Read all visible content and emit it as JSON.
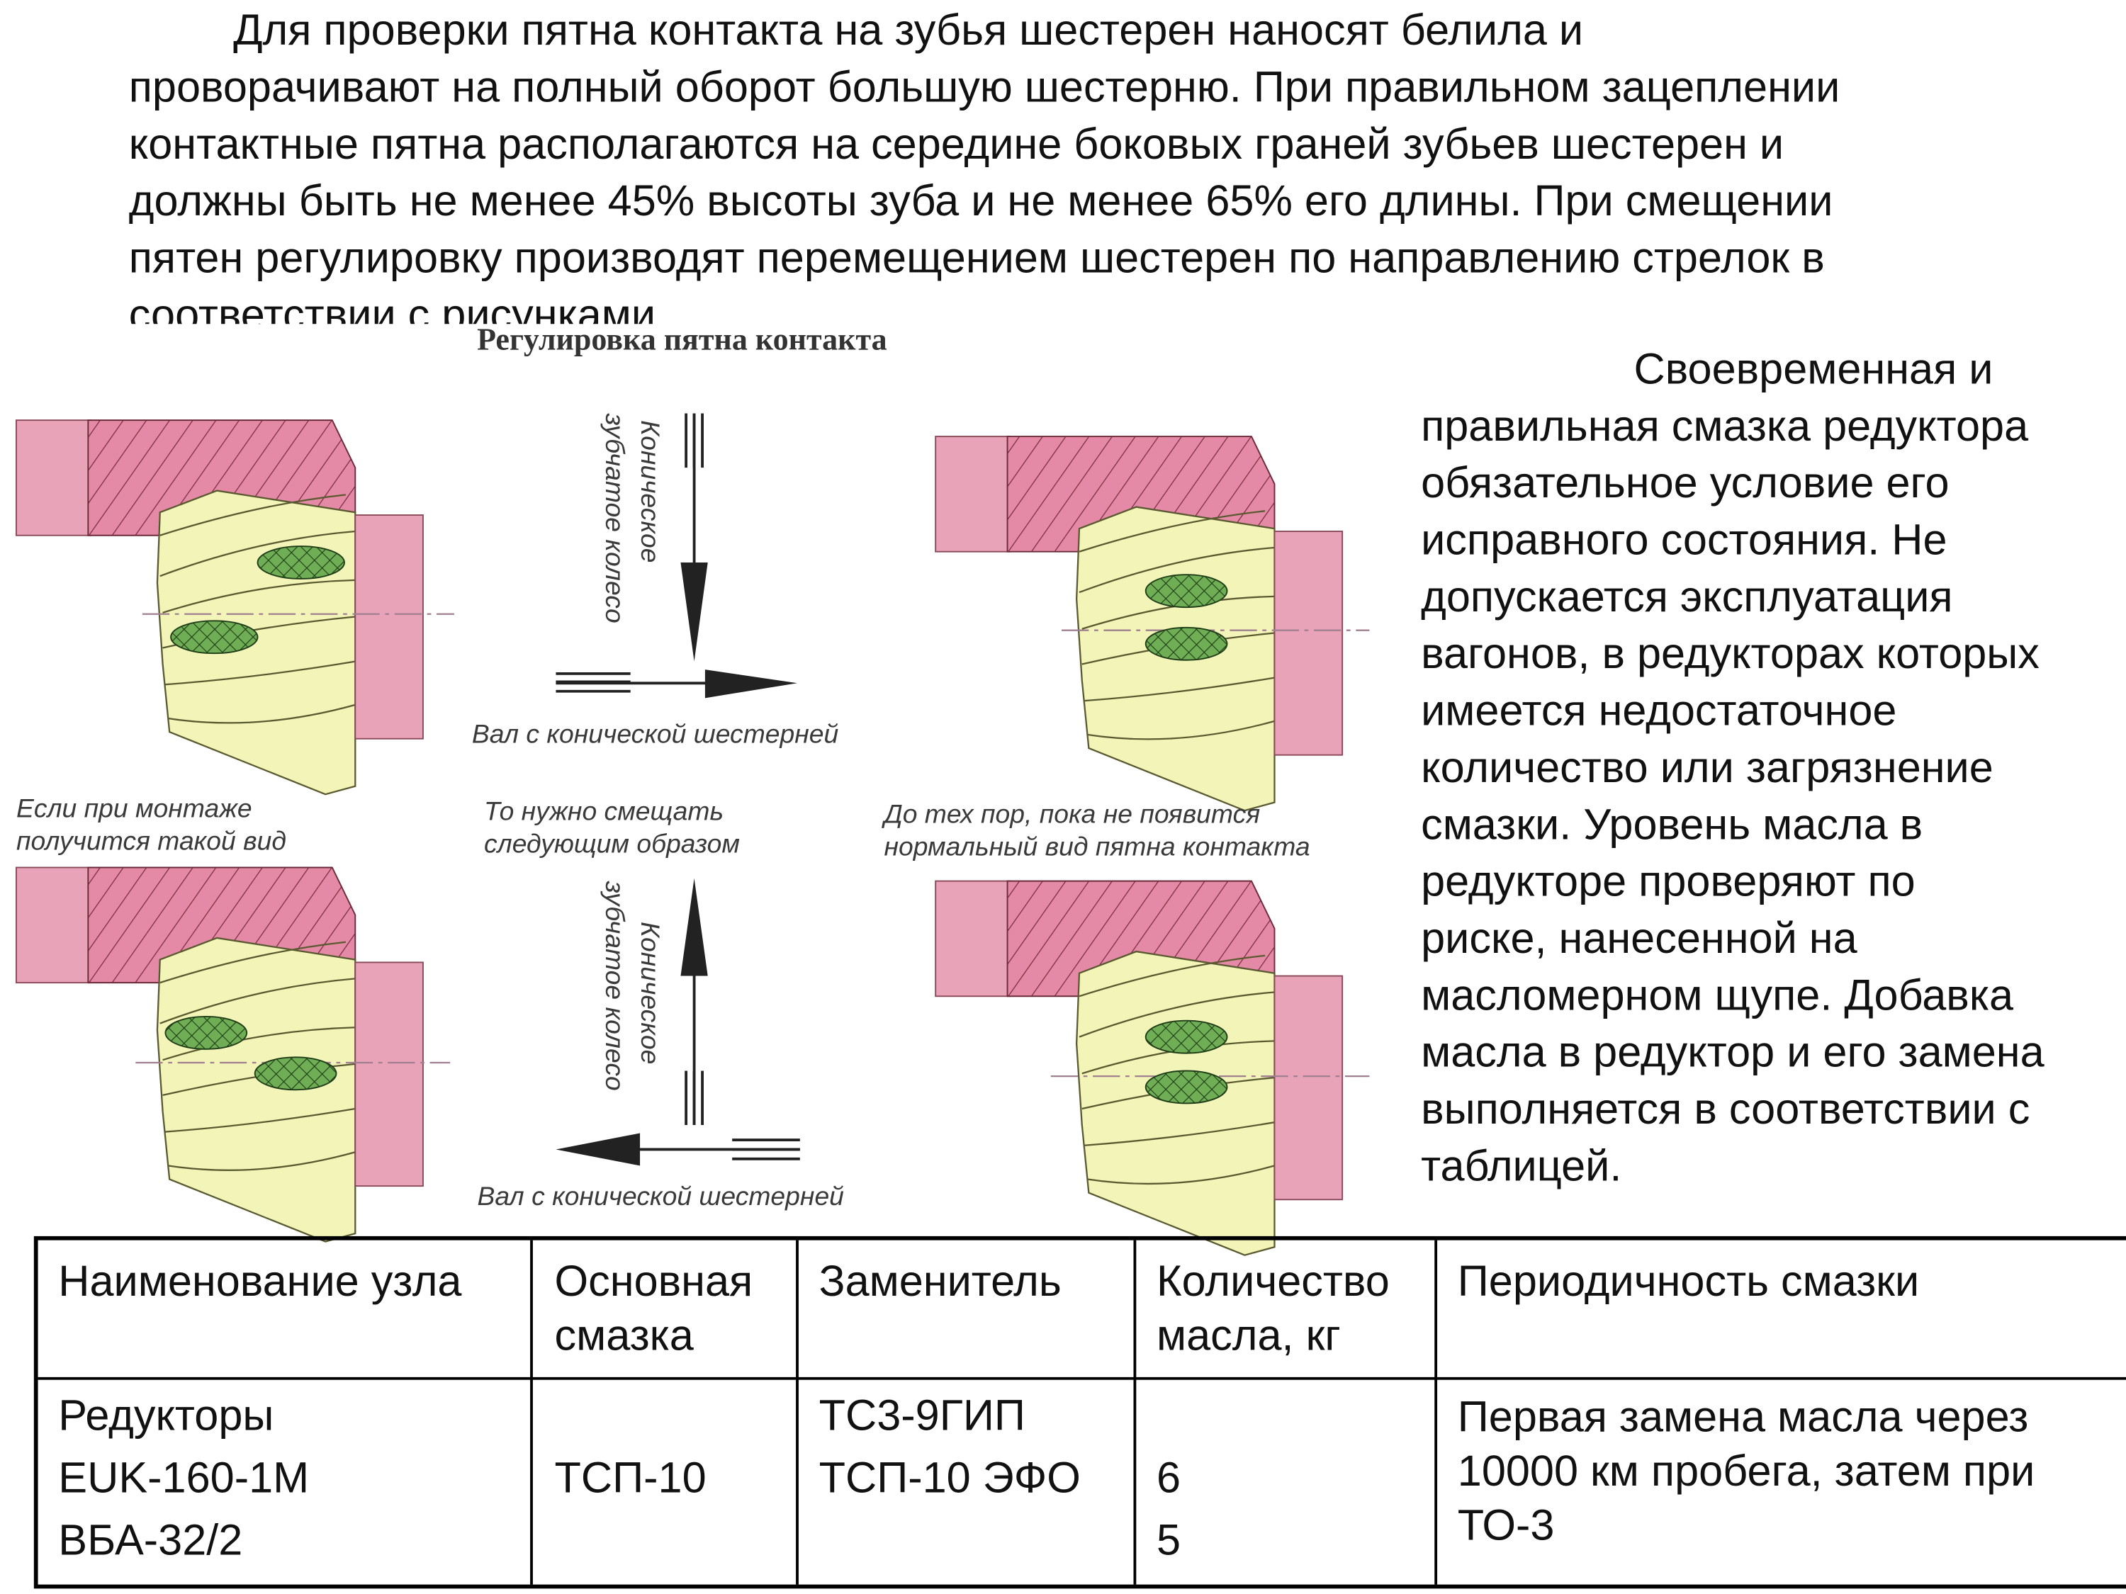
{
  "intro": {
    "lines": [
      "Для проверки пятна контакта  на зубья шестерен наносят белила и",
      "проворачивают на полный оборот большую шестерню. При правильном зацеплении",
      "контактные пятна располагаются на середине боковых граней зубьев шестерен и",
      "должны быть не менее 45% высоты зуба и не менее 65% его длины. При смещении",
      "пятен регулировку производят перемещением шестерен по направлению стрелок в",
      "соответствии с рисунками"
    ]
  },
  "figure": {
    "title": "Регулировка пятна контакта",
    "gear_wheel_label": [
      "Коническое",
      "зубчатое колесо"
    ],
    "shaft_label": "Вал с конической шестерней",
    "caption_left": [
      "Если при монтаже",
      "получится такой вид"
    ],
    "caption_middle": [
      "То нужно смещать",
      "следующим образом"
    ],
    "caption_right": [
      "До тех пор, пока не появится",
      "нормальный вид пятна контакта"
    ],
    "colors": {
      "pink": "#e9a3b8",
      "hatch_pink": "#e58aa6",
      "yellow": "#f3f5b8",
      "green": "#5f9a45"
    }
  },
  "side": {
    "lines": [
      "Своевременная и",
      "правильная смазка редуктора",
      "обязательное условие его",
      "исправного состояния. Не",
      "допускается эксплуатация",
      "вагонов, в редукторах которых",
      "имеется недостаточное",
      "количество или загрязнение",
      "смазки. Уровень масла в",
      "редукторе проверяют по",
      "риске, нанесенной на",
      "масломерном щупе. Добавка",
      "масла в редуктор и его замена",
      "выполняется в соответствии с",
      "таблицей."
    ]
  },
  "table": {
    "headers": [
      [
        "Наименование узла"
      ],
      [
        "Основная",
        "смазка"
      ],
      [
        "Заменитель"
      ],
      [
        "Количество",
        "масла, кг"
      ],
      [
        "Периодичность смазки"
      ]
    ],
    "row": {
      "unit": [
        "Редукторы",
        "EUK-160-1M",
        "ВБА-32/2"
      ],
      "main": "ТСП-10",
      "substitute": [
        "ТС3-9ГИП",
        "ТСП-10 ЭФО"
      ],
      "quantity": [
        "6",
        "5"
      ],
      "period": [
        "Первая замена масла через",
        "10000 км пробега, затем при",
        "ТО-3"
      ]
    }
  }
}
